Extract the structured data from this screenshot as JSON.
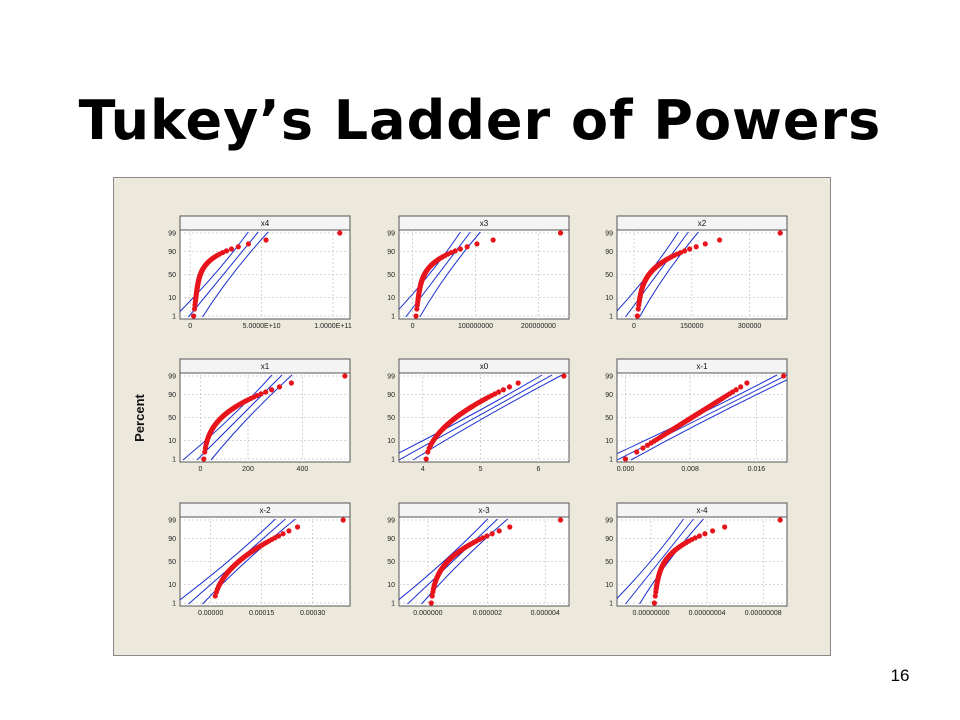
{
  "slide": {
    "title": "Tukey’s Ladder of Powers",
    "page_number": "16"
  },
  "colors": {
    "points": "#e8141c",
    "fit_lines": "#1b2fd1",
    "panel_bg": "#ffffff",
    "figure_bg": "#ece8dc",
    "grid": "#c9c9c9"
  },
  "chart_data": {
    "type": "scatter",
    "subtype": "normal probability plot grid (3x3)",
    "ylabel": "Percent",
    "y_ticks": [
      "1",
      "10",
      "50",
      "90",
      "99"
    ],
    "grid": true,
    "panels": [
      {
        "title": "x4",
        "x_ticks": [
          "0",
          "5.0000E+10",
          "1.0000E+11"
        ]
      },
      {
        "title": "x3",
        "x_ticks": [
          "0",
          "100000000",
          "200000000"
        ]
      },
      {
        "title": "x2",
        "x_ticks": [
          "0",
          "150000",
          "300000"
        ]
      },
      {
        "title": "x1",
        "x_ticks": [
          "0",
          "200",
          "400"
        ]
      },
      {
        "title": "x0",
        "x_ticks": [
          "4",
          "5",
          "6"
        ]
      },
      {
        "title": "x-1",
        "x_ticks": [
          "0.000",
          "0.008",
          "0.016"
        ]
      },
      {
        "title": "x-2",
        "x_ticks": [
          "0.00000",
          "0.00015",
          "0.00030"
        ]
      },
      {
        "title": "x-3",
        "x_ticks": [
          "0.000000",
          "0.000002",
          "0.000004"
        ]
      },
      {
        "title": "x-4",
        "x_ticks": [
          "0.00000000",
          "0.00000004",
          "0.00000008"
        ]
      }
    ]
  }
}
